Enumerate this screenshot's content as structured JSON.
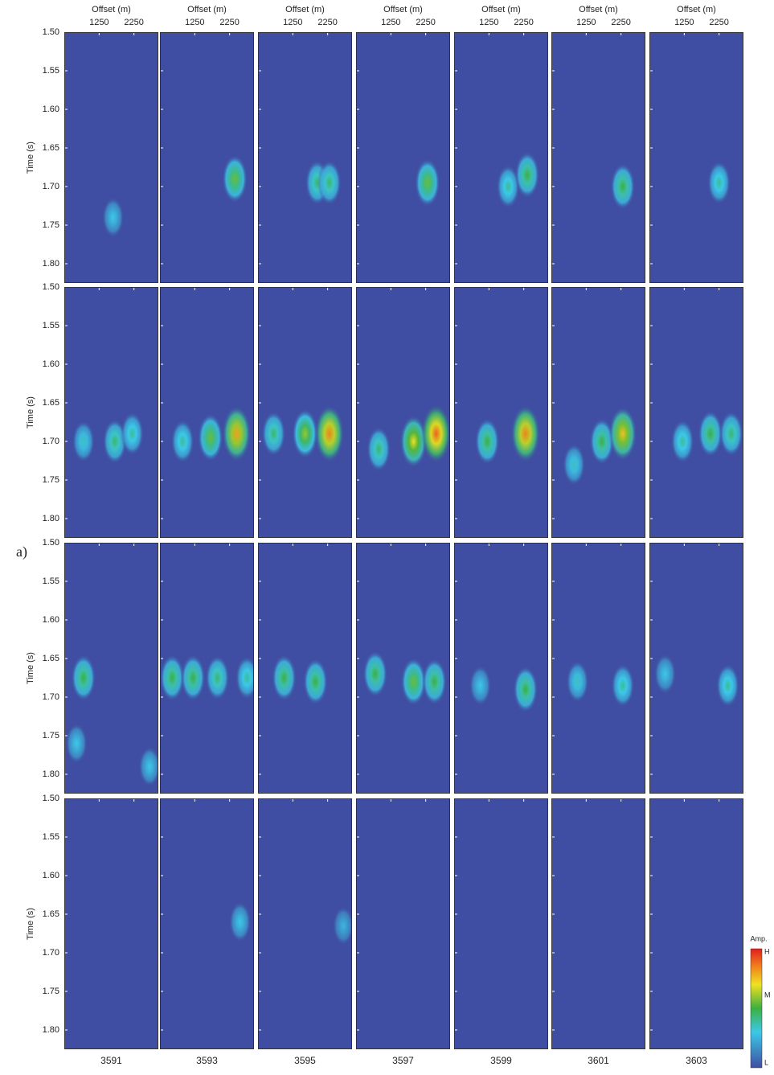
{
  "chart_data": {
    "type": "heatmap",
    "panel_label": "a)",
    "xlabel": "Offset (m)",
    "ylabel": "Time (s)",
    "xlim": [
      250,
      2950
    ],
    "xticks": [
      1250,
      2250
    ],
    "ylim": [
      1.5,
      1.825
    ],
    "yticks": [
      {
        "value": 1.5,
        "label": "1.50"
      },
      1.55,
      {
        "value": 1.6,
        "label": "1.60"
      },
      1.65,
      {
        "value": 1.7,
        "label": "1.70"
      },
      1.75,
      {
        "value": 1.8,
        "label": "1.80"
      }
    ],
    "columns": [
      "3591",
      "3593",
      "3595",
      "3597",
      "3599",
      "3601",
      "3603"
    ],
    "colorbar": {
      "title": "Amp.",
      "labels": [
        "H",
        "M",
        "L"
      ]
    },
    "rows": [
      [
        [
          {
            "offset": 1650,
            "time": 1.74,
            "amp": 0.3
          }
        ],
        [
          {
            "offset": 2400,
            "time": 1.69,
            "amp": 0.55
          }
        ],
        [
          {
            "offset": 1950,
            "time": 1.695,
            "amp": 0.45
          },
          {
            "offset": 2300,
            "time": 1.695,
            "amp": 0.45
          }
        ],
        [
          {
            "offset": 2300,
            "time": 1.695,
            "amp": 0.55
          }
        ],
        [
          {
            "offset": 1800,
            "time": 1.7,
            "amp": 0.4
          },
          {
            "offset": 2350,
            "time": 1.685,
            "amp": 0.5
          }
        ],
        [
          {
            "offset": 2300,
            "time": 1.7,
            "amp": 0.5
          }
        ],
        [
          {
            "offset": 2250,
            "time": 1.695,
            "amp": 0.4
          }
        ]
      ],
      [
        [
          {
            "offset": 800,
            "time": 1.7,
            "amp": 0.35
          },
          {
            "offset": 1700,
            "time": 1.7,
            "amp": 0.45
          },
          {
            "offset": 2200,
            "time": 1.69,
            "amp": 0.4
          }
        ],
        [
          {
            "offset": 900,
            "time": 1.7,
            "amp": 0.4
          },
          {
            "offset": 1700,
            "time": 1.695,
            "amp": 0.55
          },
          {
            "offset": 2450,
            "time": 1.69,
            "amp": 0.8
          }
        ],
        [
          {
            "offset": 700,
            "time": 1.69,
            "amp": 0.45
          },
          {
            "offset": 1600,
            "time": 1.69,
            "amp": 0.6
          },
          {
            "offset": 2300,
            "time": 1.69,
            "amp": 0.85
          }
        ],
        [
          {
            "offset": 900,
            "time": 1.71,
            "amp": 0.45
          },
          {
            "offset": 1900,
            "time": 1.7,
            "amp": 0.7
          },
          {
            "offset": 2550,
            "time": 1.69,
            "amp": 0.9
          }
        ],
        [
          {
            "offset": 1200,
            "time": 1.7,
            "amp": 0.5
          },
          {
            "offset": 2300,
            "time": 1.69,
            "amp": 0.85
          }
        ],
        [
          {
            "offset": 900,
            "time": 1.73,
            "amp": 0.35
          },
          {
            "offset": 1700,
            "time": 1.7,
            "amp": 0.5
          },
          {
            "offset": 2300,
            "time": 1.69,
            "amp": 0.75
          }
        ],
        [
          {
            "offset": 1200,
            "time": 1.7,
            "amp": 0.4
          },
          {
            "offset": 2000,
            "time": 1.69,
            "amp": 0.5
          },
          {
            "offset": 2600,
            "time": 1.69,
            "amp": 0.45
          }
        ]
      ],
      [
        [
          {
            "offset": 800,
            "time": 1.675,
            "amp": 0.5
          },
          {
            "offset": 2700,
            "time": 1.79,
            "amp": 0.3
          },
          {
            "offset": 600,
            "time": 1.76,
            "amp": 0.3
          }
        ],
        [
          {
            "offset": 600,
            "time": 1.675,
            "amp": 0.5
          },
          {
            "offset": 1200,
            "time": 1.675,
            "amp": 0.5
          },
          {
            "offset": 1900,
            "time": 1.675,
            "amp": 0.45
          },
          {
            "offset": 2750,
            "time": 1.675,
            "amp": 0.4
          }
        ],
        [
          {
            "offset": 1000,
            "time": 1.675,
            "amp": 0.5
          },
          {
            "offset": 1900,
            "time": 1.68,
            "amp": 0.5
          }
        ],
        [
          {
            "offset": 800,
            "time": 1.67,
            "amp": 0.5
          },
          {
            "offset": 1900,
            "time": 1.68,
            "amp": 0.55
          },
          {
            "offset": 2500,
            "time": 1.68,
            "amp": 0.5
          }
        ],
        [
          {
            "offset": 1000,
            "time": 1.685,
            "amp": 0.3
          },
          {
            "offset": 2300,
            "time": 1.69,
            "amp": 0.5
          }
        ],
        [
          {
            "offset": 1000,
            "time": 1.68,
            "amp": 0.35
          },
          {
            "offset": 2300,
            "time": 1.685,
            "amp": 0.4
          }
        ],
        [
          {
            "offset": 700,
            "time": 1.67,
            "amp": 0.3
          },
          {
            "offset": 2500,
            "time": 1.685,
            "amp": 0.4
          }
        ]
      ],
      [
        [],
        [
          {
            "offset": 2550,
            "time": 1.66,
            "amp": 0.3
          }
        ],
        [
          {
            "offset": 2700,
            "time": 1.665,
            "amp": 0.25
          }
        ],
        [],
        [],
        [],
        []
      ]
    ]
  }
}
